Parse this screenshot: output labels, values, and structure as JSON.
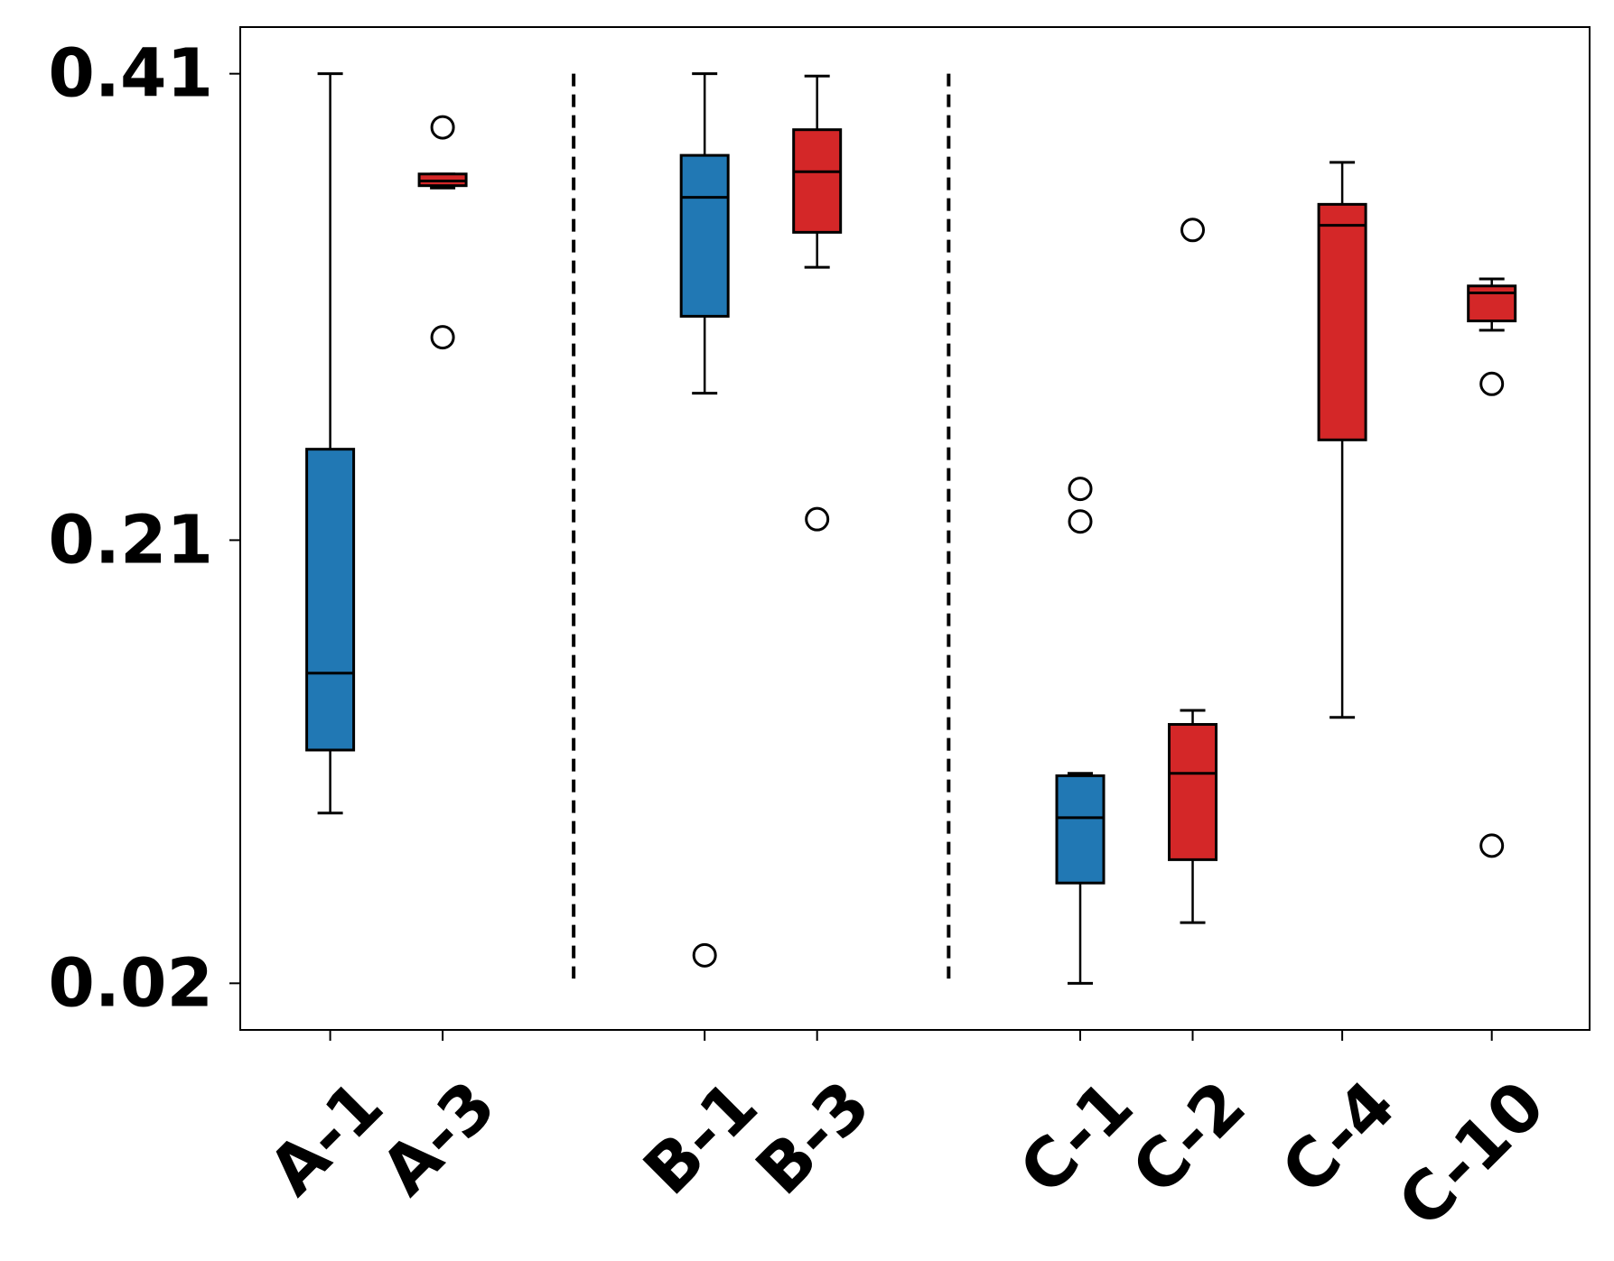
{
  "chart_data": {
    "type": "box",
    "title": "",
    "xlabel": "",
    "ylabel": "",
    "ylim": [
      0,
      0.43
    ],
    "yticks": [
      {
        "value": 0.02,
        "label": "0.02"
      },
      {
        "value": 0.21,
        "label": "0.21"
      },
      {
        "value": 0.41,
        "label": "0.41"
      }
    ],
    "grid": false,
    "group_separators_after": [
      "A-3",
      "B-3"
    ],
    "colors": {
      "blue": "#2178b4",
      "red": "#d42728"
    },
    "boxes": [
      {
        "label": "A-1",
        "pos": 1.0,
        "color": "blue",
        "whisker_low": 0.093,
        "q1": 0.12,
        "median": 0.153,
        "q3": 0.249,
        "whisker_high": 0.41,
        "fliers": []
      },
      {
        "label": "A-3",
        "pos": 2.0,
        "color": "red",
        "whisker_low": 0.361,
        "q1": 0.362,
        "median": 0.364,
        "q3": 0.367,
        "whisker_high": 0.367,
        "fliers": [
          0.387,
          0.297
        ]
      },
      {
        "label": "B-1",
        "pos": 4.33,
        "color": "blue",
        "whisker_low": 0.273,
        "q1": 0.306,
        "median": 0.357,
        "q3": 0.375,
        "whisker_high": 0.41,
        "fliers": [
          0.032
        ]
      },
      {
        "label": "B-3",
        "pos": 5.33,
        "color": "red",
        "whisker_low": 0.327,
        "q1": 0.342,
        "median": 0.368,
        "q3": 0.386,
        "whisker_high": 0.409,
        "fliers": [
          0.219
        ]
      },
      {
        "label": "C-1",
        "pos": 7.67,
        "color": "blue",
        "whisker_low": 0.02,
        "q1": 0.063,
        "median": 0.091,
        "q3": 0.109,
        "whisker_high": 0.11,
        "fliers": [
          0.232,
          0.218
        ]
      },
      {
        "label": "C-2",
        "pos": 8.67,
        "color": "red",
        "whisker_low": 0.046,
        "q1": 0.073,
        "median": 0.11,
        "q3": 0.131,
        "whisker_high": 0.137,
        "fliers": [
          0.343
        ]
      },
      {
        "label": "C-4",
        "pos": 10.0,
        "color": "red",
        "whisker_low": 0.134,
        "q1": 0.253,
        "median": 0.345,
        "q3": 0.354,
        "whisker_high": 0.372,
        "fliers": []
      },
      {
        "label": "C-10",
        "pos": 11.33,
        "color": "red",
        "whisker_low": 0.3,
        "q1": 0.304,
        "median": 0.316,
        "q3": 0.319,
        "whisker_high": 0.322,
        "fliers": [
          0.277,
          0.079
        ]
      }
    ]
  }
}
